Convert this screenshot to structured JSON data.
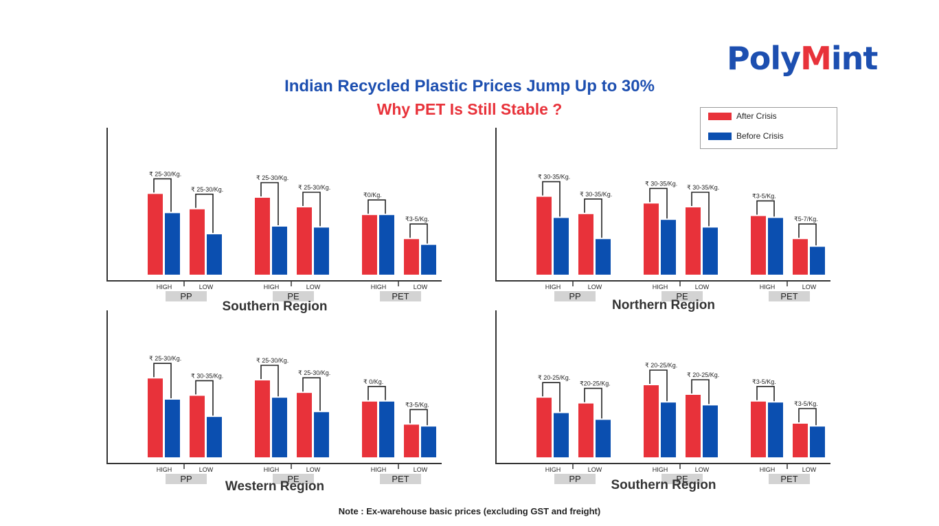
{
  "logo": {
    "part1": "Poly",
    "part2": "M",
    "part3": "int"
  },
  "title": "Indian Recycled Plastic Prices Jump Up to 30%",
  "subtitle": "Why PET Is Still Stable ?",
  "legend": {
    "after": "After Crisis",
    "before": "Before Crisis"
  },
  "colors": {
    "after": "#e8323a",
    "before": "#0b4fb0",
    "brand_blue": "#1d4fb0",
    "brand_red": "#e8323a"
  },
  "note": "Note : Ex-warehouse basic prices (excluding GST and freight)",
  "chart_data": [
    {
      "type": "bar",
      "title": "Southern Region",
      "groups": [
        "PP",
        "PE",
        "PET"
      ],
      "categories": [
        "HIGH",
        "LOW"
      ],
      "series": [
        {
          "name": "After Crisis",
          "values": [
            0.84,
            0.68,
            0.8,
            0.7,
            0.62,
            0.37
          ]
        },
        {
          "name": "Before Crisis",
          "values": [
            0.64,
            0.42,
            0.5,
            0.49,
            0.62,
            0.31
          ]
        }
      ],
      "labels": [
        "₹ 25-30/Kg.",
        "₹ 25-30/Kg.",
        "₹ 25-30/Kg.",
        "₹ 25-30/Kg.",
        "₹0/Kg.",
        "₹3-5/Kg."
      ]
    },
    {
      "type": "bar",
      "title": "Northern Region",
      "groups": [
        "PP",
        "PE",
        "PET"
      ],
      "categories": [
        "HIGH",
        "LOW"
      ],
      "series": [
        {
          "name": "After Crisis",
          "values": [
            0.81,
            0.63,
            0.74,
            0.7,
            0.61,
            0.37
          ]
        },
        {
          "name": "Before Crisis",
          "values": [
            0.59,
            0.37,
            0.57,
            0.49,
            0.59,
            0.29
          ]
        }
      ],
      "labels": [
        "₹ 30-35/Kg.",
        "₹ 30-35/Kg.",
        "₹ 30-35/Kg.",
        "₹ 30-35/Kg.",
        "₹3-5/Kg.",
        "₹5-7/Kg."
      ]
    },
    {
      "type": "bar",
      "title": "Western Region",
      "groups": [
        "PP",
        "PE",
        "PET"
      ],
      "categories": [
        "HIGH",
        "LOW"
      ],
      "series": [
        {
          "name": "After Crisis",
          "values": [
            0.82,
            0.64,
            0.8,
            0.67,
            0.58,
            0.34
          ]
        },
        {
          "name": "Before Crisis",
          "values": [
            0.6,
            0.42,
            0.62,
            0.47,
            0.58,
            0.32
          ]
        }
      ],
      "labels": [
        "₹ 25-30/Kg.",
        "₹ 30-35/Kg.",
        "₹ 25-30/Kg.",
        "₹ 25-30/Kg.",
        "₹ 0/Kg.",
        "₹3-5/Kg."
      ]
    },
    {
      "type": "bar",
      "title": "Southern Region",
      "groups": [
        "PP",
        "PE",
        "PET"
      ],
      "categories": [
        "HIGH",
        "LOW"
      ],
      "series": [
        {
          "name": "After Crisis",
          "values": [
            0.62,
            0.56,
            0.75,
            0.65,
            0.58,
            0.35
          ]
        },
        {
          "name": "Before Crisis",
          "values": [
            0.46,
            0.39,
            0.57,
            0.54,
            0.57,
            0.32
          ]
        }
      ],
      "labels": [
        "₹ 20-25/Kg.",
        "₹20-25/Kg.",
        "₹ 20-25/Kg.",
        "₹ 20-25/Kg.",
        "₹3-5/Kg.",
        "₹3-5/Kg."
      ]
    }
  ]
}
